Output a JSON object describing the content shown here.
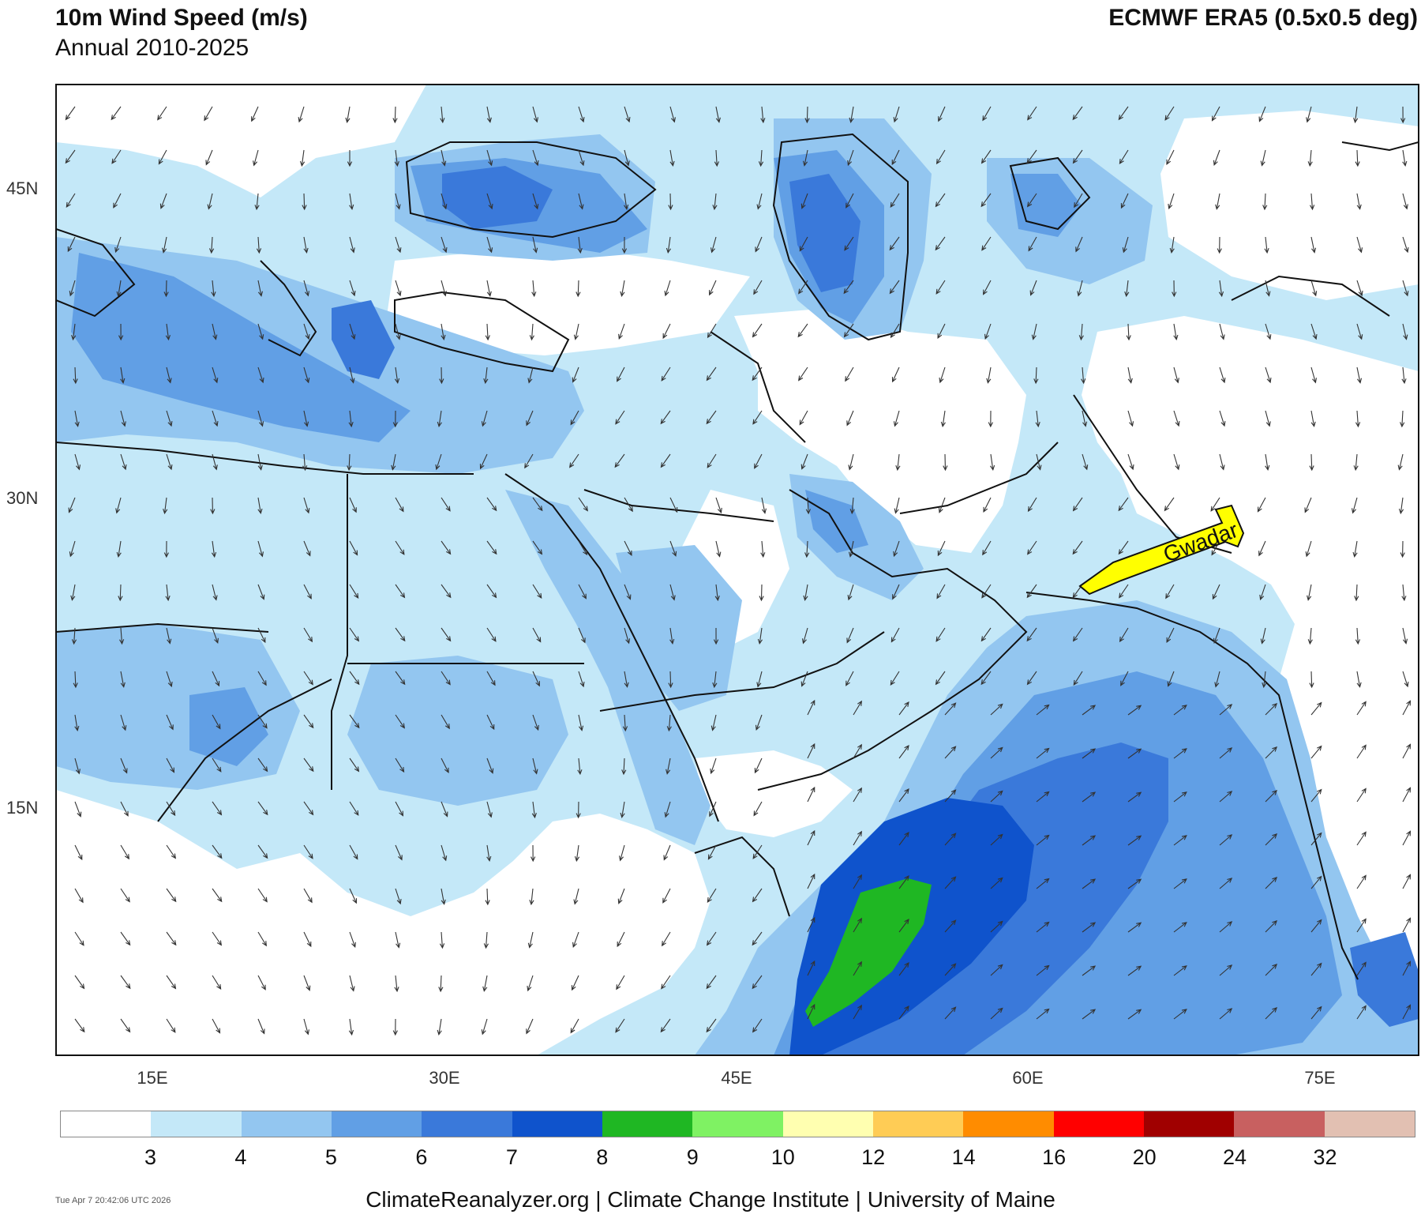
{
  "header": {
    "title": "10m Wind Speed (m/s)",
    "subtitle": "Annual 2010-2025",
    "source": "ECMWF ERA5 (0.5x0.5 deg)"
  },
  "map": {
    "lat_labels": [
      "45N",
      "30N",
      "15N"
    ],
    "lon_labels": [
      "15E",
      "30E",
      "45E",
      "60E",
      "75E"
    ],
    "annotation": "Gwadar"
  },
  "colorbar": {
    "colors": [
      "#ffffff",
      "#c4e8f8",
      "#93c6f0",
      "#619fe5",
      "#3a79da",
      "#0f53cc",
      "#1fb723",
      "#7ff263",
      "#ffffb0",
      "#ffcc55",
      "#ff8c00",
      "#ff0000",
      "#a00000",
      "#c86060",
      "#e2c0b2"
    ],
    "labels": [
      "3",
      "4",
      "5",
      "6",
      "7",
      "8",
      "9",
      "10",
      "12",
      "14",
      "16",
      "20",
      "24",
      "32"
    ]
  },
  "footer": {
    "timestamp": "Tue Apr  7 20:42:06 UTC 2026",
    "credits": "ClimateReanalyzer.org | Climate Change Institute | University of Maine"
  }
}
